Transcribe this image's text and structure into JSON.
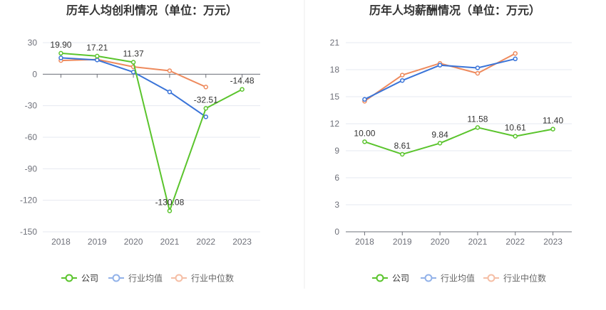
{
  "chart_data": [
    {
      "type": "line",
      "title": "历年人均创利情况（单位：万元）",
      "categories": [
        "2018",
        "2019",
        "2020",
        "2021",
        "2022",
        "2023"
      ],
      "ylim": [
        -150,
        30
      ],
      "yticks": [
        30,
        0,
        -30,
        -60,
        -90,
        -120,
        -150
      ],
      "grid": true,
      "legend": "bottom",
      "series": [
        {
          "name": "公司",
          "color": "#5ac42c",
          "values": [
            19.9,
            17.21,
            11.37,
            -130.08,
            -32.51,
            -14.48
          ],
          "data_labels": [
            "19.90",
            "17.21",
            "11.37",
            "-130.08",
            "-32.51",
            "-14.48"
          ]
        },
        {
          "name": "行业均值",
          "color": "#3a74d8",
          "values": [
            15.5,
            13.5,
            2.0,
            -16.9,
            -40.6,
            null
          ]
        },
        {
          "name": "行业中位数",
          "color": "#ee8a5d",
          "values": [
            13.0,
            14.0,
            7.0,
            3.3,
            -12.2,
            null
          ]
        }
      ]
    },
    {
      "type": "line",
      "title": "历年人均薪酬情况（单位：万元）",
      "categories": [
        "2018",
        "2019",
        "2020",
        "2021",
        "2022",
        "2023"
      ],
      "ylim": [
        0,
        21
      ],
      "yticks": [
        21,
        18,
        15,
        12,
        9,
        6,
        3,
        0
      ],
      "grid": true,
      "legend": "bottom",
      "series": [
        {
          "name": "公司",
          "color": "#5ac42c",
          "values": [
            10.0,
            8.61,
            9.84,
            11.58,
            10.61,
            11.4
          ],
          "data_labels": [
            "10.00",
            "8.61",
            "9.84",
            "11.58",
            "10.61",
            "11.40"
          ]
        },
        {
          "name": "行业均值",
          "color": "#3a74d8",
          "values": [
            14.7,
            16.8,
            18.5,
            18.2,
            19.2,
            null
          ]
        },
        {
          "name": "行业中位数",
          "color": "#ee8a5d",
          "values": [
            14.5,
            17.4,
            18.7,
            17.6,
            19.8,
            null
          ]
        }
      ]
    }
  ]
}
